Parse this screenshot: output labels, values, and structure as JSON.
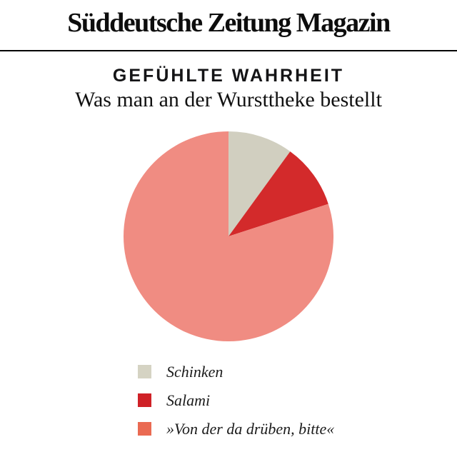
{
  "masthead": {
    "title": "Süddeutsche Zeitung Magazin"
  },
  "header": {
    "title": "GEFÜHLTE WAHRHEIT",
    "subtitle": "Was man an der Wursttheke bestellt"
  },
  "chart_data": {
    "type": "pie",
    "title": "Was man an der Wursttheke bestellt",
    "start_angle_deg": 0,
    "direction": "clockwise",
    "slices": [
      {
        "label": "Schinken",
        "value_pct": 10,
        "color": "#D1CFC0",
        "swatch_color": "#D5D3C3"
      },
      {
        "label": "Salami",
        "value_pct": 10,
        "color": "#D32A2B",
        "swatch_color": "#CF2127"
      },
      {
        "label": "»Von der da drüben, bitte«",
        "value_pct": 80,
        "color": "#F08C82",
        "swatch_color": "#EA6A52"
      }
    ],
    "legend_position": "bottom-left"
  },
  "colors": {
    "background": "#FFFFFF",
    "text": "#111111",
    "rule": "#000000"
  }
}
